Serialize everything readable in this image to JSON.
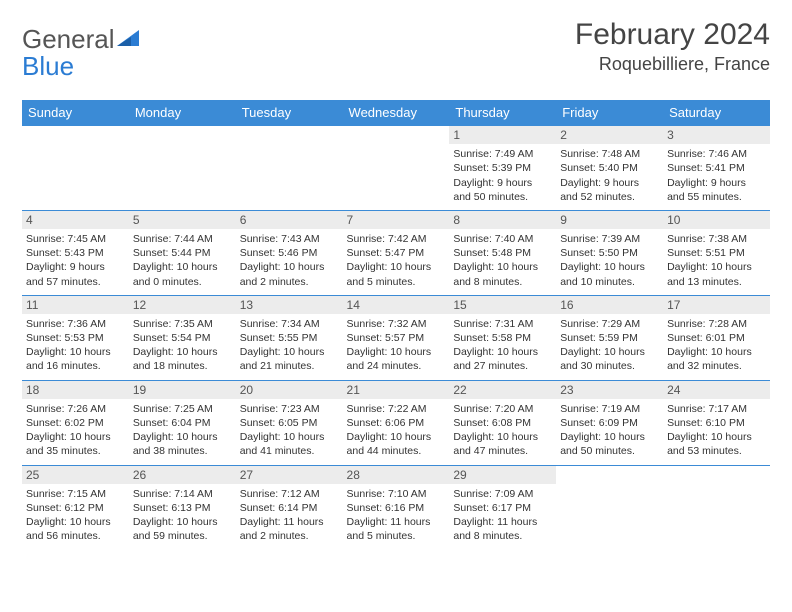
{
  "logo": {
    "text1": "General",
    "text2": "Blue"
  },
  "title": {
    "month": "February 2024",
    "location": "Roquebilliere, France"
  },
  "colors": {
    "header_bg": "#3b8bd6",
    "header_text": "#ffffff",
    "row_border": "#3b8bd6",
    "daynum_bg": "#ececec",
    "logo_gray": "#555555",
    "logo_blue": "#2b7cd3"
  },
  "weekdays": [
    "Sunday",
    "Monday",
    "Tuesday",
    "Wednesday",
    "Thursday",
    "Friday",
    "Saturday"
  ],
  "weeks": [
    [
      null,
      null,
      null,
      null,
      {
        "n": "1",
        "sr": "Sunrise: 7:49 AM",
        "ss": "Sunset: 5:39 PM",
        "dl": "Daylight: 9 hours and 50 minutes."
      },
      {
        "n": "2",
        "sr": "Sunrise: 7:48 AM",
        "ss": "Sunset: 5:40 PM",
        "dl": "Daylight: 9 hours and 52 minutes."
      },
      {
        "n": "3",
        "sr": "Sunrise: 7:46 AM",
        "ss": "Sunset: 5:41 PM",
        "dl": "Daylight: 9 hours and 55 minutes."
      }
    ],
    [
      {
        "n": "4",
        "sr": "Sunrise: 7:45 AM",
        "ss": "Sunset: 5:43 PM",
        "dl": "Daylight: 9 hours and 57 minutes."
      },
      {
        "n": "5",
        "sr": "Sunrise: 7:44 AM",
        "ss": "Sunset: 5:44 PM",
        "dl": "Daylight: 10 hours and 0 minutes."
      },
      {
        "n": "6",
        "sr": "Sunrise: 7:43 AM",
        "ss": "Sunset: 5:46 PM",
        "dl": "Daylight: 10 hours and 2 minutes."
      },
      {
        "n": "7",
        "sr": "Sunrise: 7:42 AM",
        "ss": "Sunset: 5:47 PM",
        "dl": "Daylight: 10 hours and 5 minutes."
      },
      {
        "n": "8",
        "sr": "Sunrise: 7:40 AM",
        "ss": "Sunset: 5:48 PM",
        "dl": "Daylight: 10 hours and 8 minutes."
      },
      {
        "n": "9",
        "sr": "Sunrise: 7:39 AM",
        "ss": "Sunset: 5:50 PM",
        "dl": "Daylight: 10 hours and 10 minutes."
      },
      {
        "n": "10",
        "sr": "Sunrise: 7:38 AM",
        "ss": "Sunset: 5:51 PM",
        "dl": "Daylight: 10 hours and 13 minutes."
      }
    ],
    [
      {
        "n": "11",
        "sr": "Sunrise: 7:36 AM",
        "ss": "Sunset: 5:53 PM",
        "dl": "Daylight: 10 hours and 16 minutes."
      },
      {
        "n": "12",
        "sr": "Sunrise: 7:35 AM",
        "ss": "Sunset: 5:54 PM",
        "dl": "Daylight: 10 hours and 18 minutes."
      },
      {
        "n": "13",
        "sr": "Sunrise: 7:34 AM",
        "ss": "Sunset: 5:55 PM",
        "dl": "Daylight: 10 hours and 21 minutes."
      },
      {
        "n": "14",
        "sr": "Sunrise: 7:32 AM",
        "ss": "Sunset: 5:57 PM",
        "dl": "Daylight: 10 hours and 24 minutes."
      },
      {
        "n": "15",
        "sr": "Sunrise: 7:31 AM",
        "ss": "Sunset: 5:58 PM",
        "dl": "Daylight: 10 hours and 27 minutes."
      },
      {
        "n": "16",
        "sr": "Sunrise: 7:29 AM",
        "ss": "Sunset: 5:59 PM",
        "dl": "Daylight: 10 hours and 30 minutes."
      },
      {
        "n": "17",
        "sr": "Sunrise: 7:28 AM",
        "ss": "Sunset: 6:01 PM",
        "dl": "Daylight: 10 hours and 32 minutes."
      }
    ],
    [
      {
        "n": "18",
        "sr": "Sunrise: 7:26 AM",
        "ss": "Sunset: 6:02 PM",
        "dl": "Daylight: 10 hours and 35 minutes."
      },
      {
        "n": "19",
        "sr": "Sunrise: 7:25 AM",
        "ss": "Sunset: 6:04 PM",
        "dl": "Daylight: 10 hours and 38 minutes."
      },
      {
        "n": "20",
        "sr": "Sunrise: 7:23 AM",
        "ss": "Sunset: 6:05 PM",
        "dl": "Daylight: 10 hours and 41 minutes."
      },
      {
        "n": "21",
        "sr": "Sunrise: 7:22 AM",
        "ss": "Sunset: 6:06 PM",
        "dl": "Daylight: 10 hours and 44 minutes."
      },
      {
        "n": "22",
        "sr": "Sunrise: 7:20 AM",
        "ss": "Sunset: 6:08 PM",
        "dl": "Daylight: 10 hours and 47 minutes."
      },
      {
        "n": "23",
        "sr": "Sunrise: 7:19 AM",
        "ss": "Sunset: 6:09 PM",
        "dl": "Daylight: 10 hours and 50 minutes."
      },
      {
        "n": "24",
        "sr": "Sunrise: 7:17 AM",
        "ss": "Sunset: 6:10 PM",
        "dl": "Daylight: 10 hours and 53 minutes."
      }
    ],
    [
      {
        "n": "25",
        "sr": "Sunrise: 7:15 AM",
        "ss": "Sunset: 6:12 PM",
        "dl": "Daylight: 10 hours and 56 minutes."
      },
      {
        "n": "26",
        "sr": "Sunrise: 7:14 AM",
        "ss": "Sunset: 6:13 PM",
        "dl": "Daylight: 10 hours and 59 minutes."
      },
      {
        "n": "27",
        "sr": "Sunrise: 7:12 AM",
        "ss": "Sunset: 6:14 PM",
        "dl": "Daylight: 11 hours and 2 minutes."
      },
      {
        "n": "28",
        "sr": "Sunrise: 7:10 AM",
        "ss": "Sunset: 6:16 PM",
        "dl": "Daylight: 11 hours and 5 minutes."
      },
      {
        "n": "29",
        "sr": "Sunrise: 7:09 AM",
        "ss": "Sunset: 6:17 PM",
        "dl": "Daylight: 11 hours and 8 minutes."
      },
      null,
      null
    ]
  ]
}
